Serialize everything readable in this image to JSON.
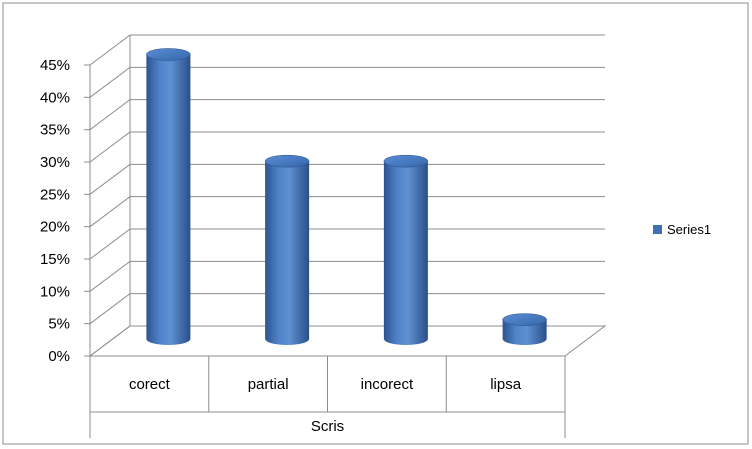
{
  "chart_data": {
    "type": "bar",
    "style": "3d-cylinder",
    "categories": [
      "corect",
      "partial",
      "incorect",
      "lipsa"
    ],
    "group_label": "Scris",
    "series": [
      {
        "name": "Series1",
        "values": [
          0.44,
          0.275,
          0.275,
          0.03
        ],
        "color": "#3f6fb3"
      }
    ],
    "ylim": [
      0,
      0.45
    ],
    "yticks": [
      "0%",
      "5%",
      "10%",
      "15%",
      "20%",
      "25%",
      "30%",
      "35%",
      "40%",
      "45%"
    ],
    "grid": true,
    "legend": "right"
  }
}
